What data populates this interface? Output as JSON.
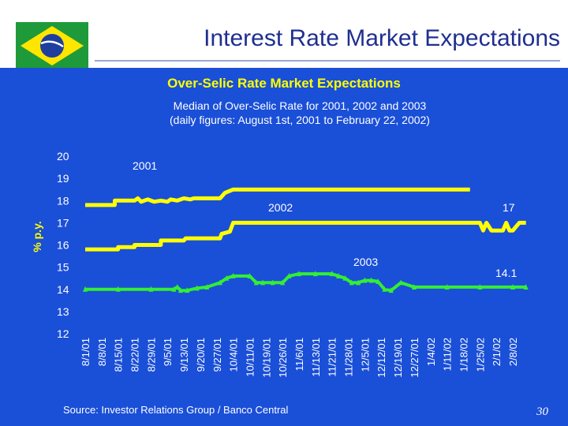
{
  "header": {
    "title": "Interest Rate Market Expectations"
  },
  "footer": {
    "source": "Source: Investor Relations Group / Banco Central",
    "page_number": "30"
  },
  "colors": {
    "background": "#1a4fd8",
    "series_2001": "#ffff00",
    "series_2002": "#ffff00",
    "series_2003": "#33ee33",
    "title": "#1f2f8f"
  },
  "chart_data": {
    "type": "line",
    "title": "Over-Selic Rate Market Expectations",
    "subtitle_line1": "Median of Over-Selic Rate for 2001, 2002 and 2003",
    "subtitle_line2": "(daily figures: August 1st, 2001 to February 22, 2002)",
    "ylabel": "% p.y.",
    "ylim": [
      12,
      20
    ],
    "yticks": [
      "20",
      "19",
      "18",
      "17",
      "16",
      "15",
      "14",
      "13",
      "12"
    ],
    "xticks": [
      "8/1/01",
      "8/8/01",
      "8/15/01",
      "8/22/01",
      "8/29/01",
      "9/5/01",
      "9/13/01",
      "9/20/01",
      "9/27/01",
      "10/4/01",
      "10/11/01",
      "10/19/01",
      "10/26/01",
      "11/6/01",
      "11/13/01",
      "11/21/01",
      "11/28/01",
      "12/5/01",
      "12/12/01",
      "12/19/01",
      "12/27/01",
      "1/4/02",
      "1/11/02",
      "1/18/02",
      "1/25/02",
      "2/1/02",
      "2/8/02"
    ],
    "series": [
      {
        "name": "2001",
        "label": "2001",
        "x": [
          0,
          1.8,
          1.8,
          3.0,
          3.2,
          3.4,
          3.6,
          3.8,
          4.2,
          4.6,
          5.0,
          5.2,
          5.6,
          6.0,
          6.4,
          6.6,
          7.0,
          7.5,
          8.2,
          8.5,
          9.0,
          10,
          12,
          14,
          16,
          18,
          20,
          22,
          23.4
        ],
        "values": [
          17.8,
          17.8,
          18.0,
          18.0,
          18.1,
          17.95,
          18.0,
          18.05,
          17.95,
          18.0,
          17.95,
          18.05,
          18.0,
          18.1,
          18.05,
          18.1,
          18.1,
          18.1,
          18.1,
          18.35,
          18.5,
          18.5,
          18.5,
          18.5,
          18.5,
          18.5,
          18.5,
          18.5,
          18.5
        ]
      },
      {
        "name": "2002",
        "label": "2002",
        "end_label": "17",
        "x": [
          0,
          2.0,
          2.0,
          3.0,
          3.0,
          4.2,
          4.6,
          4.6,
          6.0,
          6.1,
          8.2,
          8.3,
          8.8,
          9.0,
          10.0,
          12,
          14,
          16,
          18,
          20,
          22,
          24.0,
          24.2,
          24.4,
          24.7,
          25.0,
          25.4,
          25.6,
          25.8,
          26.0,
          26.4,
          26.8
        ],
        "values": [
          15.8,
          15.8,
          15.9,
          15.9,
          16.0,
          16.0,
          16.0,
          16.2,
          16.2,
          16.3,
          16.3,
          16.5,
          16.6,
          17.0,
          17.0,
          17.0,
          17.0,
          17.0,
          17.0,
          17.0,
          17.0,
          17.0,
          16.65,
          17.0,
          16.65,
          16.65,
          16.65,
          17.0,
          16.65,
          16.65,
          17.0,
          17.0
        ]
      },
      {
        "name": "2003",
        "label": "2003",
        "end_label": "14.1",
        "x": [
          0,
          2,
          4,
          5.4,
          5.6,
          5.8,
          6.2,
          6.8,
          7.4,
          8.2,
          8.6,
          9.0,
          10.0,
          10.4,
          10.8,
          11.4,
          12.0,
          12.4,
          13.0,
          14,
          15,
          15.4,
          15.8,
          16.2,
          16.6,
          17.0,
          17.4,
          17.8,
          18.2,
          18.6,
          19.2,
          20,
          22,
          24,
          26,
          26.8
        ],
        "values": [
          14.0,
          14.0,
          14.0,
          14.0,
          14.1,
          13.95,
          13.95,
          14.05,
          14.1,
          14.3,
          14.5,
          14.6,
          14.6,
          14.3,
          14.3,
          14.3,
          14.3,
          14.6,
          14.7,
          14.7,
          14.7,
          14.6,
          14.5,
          14.3,
          14.3,
          14.4,
          14.4,
          14.35,
          14.0,
          13.95,
          14.3,
          14.1,
          14.1,
          14.1,
          14.1,
          14.1
        ]
      }
    ]
  }
}
